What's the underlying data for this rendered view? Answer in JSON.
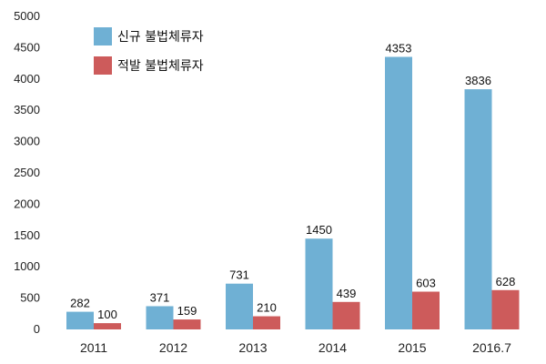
{
  "chart_data": {
    "type": "bar",
    "title": "",
    "xlabel": "",
    "ylabel": "",
    "categories": [
      "2011",
      "2012",
      "2013",
      "2014",
      "2015",
      "2016.7"
    ],
    "ylim": [
      0,
      5000
    ],
    "yticks": [
      0,
      500,
      1000,
      1500,
      2000,
      2500,
      3000,
      3500,
      4000,
      4500,
      5000
    ],
    "grid": false,
    "legend_position": "top-left",
    "series": [
      {
        "name": "신규 불법체류자",
        "color": "#6fb0d4",
        "values": [
          282,
          371,
          731,
          1450,
          4353,
          3836
        ]
      },
      {
        "name": "적발 불법체류자",
        "color": "#cd5b5b",
        "values": [
          100,
          159,
          210,
          439,
          603,
          628
        ]
      }
    ]
  }
}
